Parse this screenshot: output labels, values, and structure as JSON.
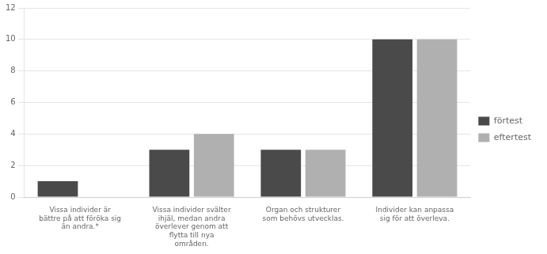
{
  "chart_data": {
    "type": "bar",
    "categories": [
      "Vissa individer är\nbättre på att föröka sig\nän andra.*",
      "Vissa individer svälter\nihjäl, medan andra\növerlever genom att\nflytta till nya\nområden.",
      "Organ och strukturer\nsom behövs utvecklas.",
      "Individer kan anpassa\nsig för att överleva."
    ],
    "series": [
      {
        "name": "förtest",
        "color": "#4a4a4a",
        "values": [
          1,
          3,
          3,
          10
        ]
      },
      {
        "name": "eftertest",
        "color": "#b0b0b0",
        "values": [
          0,
          4,
          3,
          10
        ]
      }
    ],
    "ylim": [
      0,
      12
    ],
    "yticks": [
      0,
      2,
      4,
      6,
      8,
      10,
      12
    ],
    "grid": true,
    "legend": "right"
  }
}
